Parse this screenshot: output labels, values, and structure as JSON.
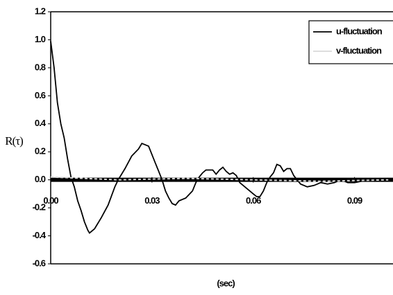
{
  "chart_data": {
    "type": "line",
    "xlabel": "(sec)",
    "ylabel": "R(τ)",
    "x": [
      0,
      0.001,
      0.002,
      0.003,
      0.004,
      0.005,
      0.006,
      0.007,
      0.008,
      0.009,
      0.01,
      0.011,
      0.0115,
      0.013,
      0.015,
      0.017,
      0.019,
      0.02,
      0.022,
      0.024,
      0.026,
      0.027,
      0.029,
      0.031,
      0.032,
      0.033,
      0.034,
      0.035,
      0.036,
      0.037,
      0.038,
      0.04,
      0.042,
      0.043,
      0.044,
      0.045,
      0.046,
      0.048,
      0.049,
      0.05,
      0.051,
      0.052,
      0.053,
      0.054,
      0.055,
      0.056,
      0.058,
      0.06,
      0.061,
      0.062,
      0.063,
      0.064,
      0.065,
      0.066,
      0.067,
      0.068,
      0.069,
      0.07,
      0.071,
      0.072,
      0.073,
      0.074,
      0.076,
      0.078,
      0.08,
      0.082,
      0.084,
      0.086,
      0.088,
      0.09,
      0.092,
      0.094,
      0.096,
      0.098,
      0.1
    ],
    "series": [
      {
        "name": "u-fluctuation",
        "color": "#000000",
        "values": [
          0.99,
          0.8,
          0.55,
          0.4,
          0.3,
          0.15,
          0.02,
          -0.05,
          -0.15,
          -0.22,
          -0.3,
          -0.36,
          -0.38,
          -0.35,
          -0.27,
          -0.18,
          -0.05,
          0.0,
          0.08,
          0.17,
          0.22,
          0.26,
          0.24,
          0.12,
          0.06,
          0.0,
          -0.08,
          -0.13,
          -0.17,
          -0.18,
          -0.15,
          -0.13,
          -0.08,
          -0.02,
          0.02,
          0.05,
          0.07,
          0.07,
          0.04,
          0.07,
          0.09,
          0.06,
          0.04,
          0.05,
          0.03,
          -0.02,
          -0.06,
          -0.1,
          -0.12,
          -0.12,
          -0.08,
          -0.02,
          0.02,
          0.05,
          0.11,
          0.1,
          0.06,
          0.08,
          0.08,
          0.03,
          0.0,
          -0.03,
          -0.05,
          -0.04,
          -0.02,
          -0.03,
          -0.02,
          0.0,
          -0.02,
          -0.02,
          -0.01,
          0.0,
          -0.01,
          0.0,
          0.01
        ]
      },
      {
        "name": "v-fluctuation",
        "color": "#d8d8d8",
        "x": [
          0,
          0.02,
          0.04,
          0.06,
          0.08,
          0.1
        ],
        "values": [
          0.02,
          0.0,
          0.01,
          0.0,
          -0.01,
          0.0
        ]
      }
    ],
    "xlim": [
      0,
      0.1014
    ],
    "ylim": [
      -0.6,
      1.2
    ],
    "xticks": [
      {
        "value": 0,
        "label": "0.00"
      },
      0.03,
      0.06,
      0.09
    ],
    "yticks": [
      -0.6,
      -0.4,
      -0.2,
      {
        "value": 0,
        "label": "0.0"
      },
      0.2,
      0.4,
      0.6,
      0.8,
      {
        "value": 1,
        "label": "1.0"
      },
      1.2
    ],
    "zero_line": true,
    "legend": "upper right"
  }
}
